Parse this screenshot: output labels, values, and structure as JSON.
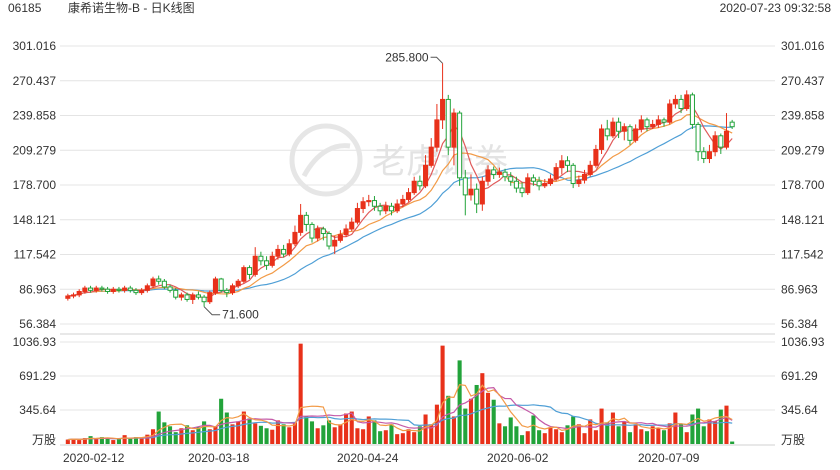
{
  "header": {
    "code": "06185",
    "name": "康希诺生物-B - 日K线图",
    "timestamp": "2020-07-23 09:32:58"
  },
  "watermark": {
    "text": "老虎证券"
  },
  "colors": {
    "up": "#e8311a",
    "down": "#22a33a",
    "ma5": "#e05a5a",
    "ma10": "#f29a46",
    "ma20": "#4f9fd6",
    "ma30": "#c45aa8",
    "grid": "#e4e4e4"
  },
  "chart_data": {
    "type": "candlestick",
    "price_axis": {
      "ticks": [
        "301.016",
        "270.437",
        "239.858",
        "209.279",
        "178.700",
        "148.121",
        "117.542",
        "86.963",
        "56.384"
      ],
      "range": [
        56.384,
        301.016
      ]
    },
    "volume_axis": {
      "ticks": [
        "1036.93",
        "691.29",
        "345.64"
      ],
      "unit": "万股",
      "range": [
        0,
        1036.93
      ]
    },
    "x_labels": [
      "2020-02-12",
      "2020-03-18",
      "2020-04-24",
      "2020-06-02",
      "2020-07-09"
    ],
    "annotations": {
      "high": {
        "label": "285.800",
        "value": 285.8
      },
      "low": {
        "label": "71.600",
        "value": 71.6
      }
    },
    "candles": [
      {
        "o": 79,
        "c": 81,
        "h": 83,
        "l": 77
      },
      {
        "o": 81,
        "c": 82,
        "h": 84,
        "l": 79
      },
      {
        "o": 82,
        "c": 85,
        "h": 87,
        "l": 80
      },
      {
        "o": 85,
        "c": 88,
        "h": 90,
        "l": 83
      },
      {
        "o": 88,
        "c": 86,
        "h": 90,
        "l": 84
      },
      {
        "o": 86,
        "c": 88,
        "h": 90,
        "l": 84
      },
      {
        "o": 88,
        "c": 87,
        "h": 90,
        "l": 85
      },
      {
        "o": 87,
        "c": 85,
        "h": 89,
        "l": 83
      },
      {
        "o": 85,
        "c": 87,
        "h": 89,
        "l": 83
      },
      {
        "o": 87,
        "c": 86,
        "h": 89,
        "l": 84
      },
      {
        "o": 86,
        "c": 88,
        "h": 90,
        "l": 84
      },
      {
        "o": 88,
        "c": 86,
        "h": 90,
        "l": 84
      },
      {
        "o": 86,
        "c": 84,
        "h": 88,
        "l": 82
      },
      {
        "o": 84,
        "c": 86,
        "h": 88,
        "l": 82
      },
      {
        "o": 86,
        "c": 90,
        "h": 92,
        "l": 84
      },
      {
        "o": 90,
        "c": 96,
        "h": 98,
        "l": 88
      },
      {
        "o": 96,
        "c": 94,
        "h": 99,
        "l": 91
      },
      {
        "o": 94,
        "c": 89,
        "h": 96,
        "l": 87
      },
      {
        "o": 89,
        "c": 86,
        "h": 91,
        "l": 84
      },
      {
        "o": 86,
        "c": 80,
        "h": 88,
        "l": 78
      },
      {
        "o": 80,
        "c": 82,
        "h": 84,
        "l": 77
      },
      {
        "o": 82,
        "c": 78,
        "h": 84,
        "l": 76
      },
      {
        "o": 78,
        "c": 82,
        "h": 84,
        "l": 74
      },
      {
        "o": 82,
        "c": 80,
        "h": 85,
        "l": 78
      },
      {
        "o": 80,
        "c": 76,
        "h": 82,
        "l": 71.6
      },
      {
        "o": 76,
        "c": 84,
        "h": 86,
        "l": 74
      },
      {
        "o": 84,
        "c": 96,
        "h": 98,
        "l": 82
      },
      {
        "o": 96,
        "c": 86,
        "h": 97,
        "l": 84
      },
      {
        "o": 86,
        "c": 84,
        "h": 88,
        "l": 80
      },
      {
        "o": 84,
        "c": 90,
        "h": 92,
        "l": 82
      },
      {
        "o": 90,
        "c": 94,
        "h": 96,
        "l": 88
      },
      {
        "o": 94,
        "c": 106,
        "h": 108,
        "l": 92
      },
      {
        "o": 106,
        "c": 100,
        "h": 108,
        "l": 96
      },
      {
        "o": 100,
        "c": 116,
        "h": 124,
        "l": 98
      },
      {
        "o": 116,
        "c": 112,
        "h": 120,
        "l": 108
      },
      {
        "o": 112,
        "c": 108,
        "h": 116,
        "l": 104
      },
      {
        "o": 108,
        "c": 116,
        "h": 120,
        "l": 106
      },
      {
        "o": 116,
        "c": 122,
        "h": 126,
        "l": 113
      },
      {
        "o": 122,
        "c": 118,
        "h": 126,
        "l": 115
      },
      {
        "o": 118,
        "c": 127,
        "h": 131,
        "l": 116
      },
      {
        "o": 127,
        "c": 137,
        "h": 143,
        "l": 125
      },
      {
        "o": 137,
        "c": 152,
        "h": 162,
        "l": 134
      },
      {
        "o": 152,
        "c": 144,
        "h": 155,
        "l": 138
      },
      {
        "o": 144,
        "c": 132,
        "h": 146,
        "l": 128
      },
      {
        "o": 132,
        "c": 140,
        "h": 143,
        "l": 129
      },
      {
        "o": 140,
        "c": 136,
        "h": 142,
        "l": 130
      },
      {
        "o": 136,
        "c": 125,
        "h": 138,
        "l": 122
      },
      {
        "o": 125,
        "c": 130,
        "h": 134,
        "l": 118
      },
      {
        "o": 130,
        "c": 135,
        "h": 139,
        "l": 128
      },
      {
        "o": 135,
        "c": 140,
        "h": 144,
        "l": 133
      },
      {
        "o": 140,
        "c": 146,
        "h": 150,
        "l": 138
      },
      {
        "o": 146,
        "c": 158,
        "h": 163,
        "l": 144
      },
      {
        "o": 158,
        "c": 164,
        "h": 168,
        "l": 154
      },
      {
        "o": 164,
        "c": 165,
        "h": 170,
        "l": 160
      },
      {
        "o": 165,
        "c": 160,
        "h": 169,
        "l": 156
      },
      {
        "o": 160,
        "c": 156,
        "h": 163,
        "l": 152
      },
      {
        "o": 156,
        "c": 160,
        "h": 164,
        "l": 153
      },
      {
        "o": 160,
        "c": 156,
        "h": 163,
        "l": 152
      },
      {
        "o": 156,
        "c": 162,
        "h": 166,
        "l": 154
      },
      {
        "o": 162,
        "c": 166,
        "h": 170,
        "l": 159
      },
      {
        "o": 166,
        "c": 172,
        "h": 176,
        "l": 164
      },
      {
        "o": 172,
        "c": 182,
        "h": 186,
        "l": 170
      },
      {
        "o": 182,
        "c": 178,
        "h": 187,
        "l": 174
      },
      {
        "o": 178,
        "c": 196,
        "h": 205,
        "l": 176
      },
      {
        "o": 196,
        "c": 212,
        "h": 220,
        "l": 194
      },
      {
        "o": 212,
        "c": 236,
        "h": 250,
        "l": 208
      },
      {
        "o": 236,
        "c": 254,
        "h": 285.8,
        "l": 228
      },
      {
        "o": 254,
        "c": 212,
        "h": 258,
        "l": 205
      },
      {
        "o": 212,
        "c": 242,
        "h": 246,
        "l": 196
      },
      {
        "o": 242,
        "c": 185,
        "h": 244,
        "l": 178
      },
      {
        "o": 185,
        "c": 170,
        "h": 192,
        "l": 152
      },
      {
        "o": 170,
        "c": 175,
        "h": 188,
        "l": 165
      },
      {
        "o": 175,
        "c": 162,
        "h": 180,
        "l": 154
      },
      {
        "o": 162,
        "c": 182,
        "h": 186,
        "l": 156
      },
      {
        "o": 182,
        "c": 192,
        "h": 196,
        "l": 178
      },
      {
        "o": 192,
        "c": 188,
        "h": 195,
        "l": 184
      },
      {
        "o": 188,
        "c": 190,
        "h": 194,
        "l": 185
      },
      {
        "o": 190,
        "c": 186,
        "h": 193,
        "l": 182
      },
      {
        "o": 186,
        "c": 182,
        "h": 190,
        "l": 178
      },
      {
        "o": 182,
        "c": 176,
        "h": 186,
        "l": 172
      },
      {
        "o": 176,
        "c": 172,
        "h": 181,
        "l": 168
      },
      {
        "o": 172,
        "c": 185,
        "h": 189,
        "l": 170
      },
      {
        "o": 185,
        "c": 182,
        "h": 188,
        "l": 178
      },
      {
        "o": 182,
        "c": 178,
        "h": 186,
        "l": 174
      },
      {
        "o": 178,
        "c": 180,
        "h": 184,
        "l": 176
      },
      {
        "o": 180,
        "c": 184,
        "h": 188,
        "l": 178
      },
      {
        "o": 184,
        "c": 194,
        "h": 198,
        "l": 182
      },
      {
        "o": 194,
        "c": 200,
        "h": 205,
        "l": 188
      },
      {
        "o": 200,
        "c": 196,
        "h": 204,
        "l": 190
      },
      {
        "o": 196,
        "c": 180,
        "h": 198,
        "l": 176
      },
      {
        "o": 180,
        "c": 183,
        "h": 187,
        "l": 177
      },
      {
        "o": 183,
        "c": 188,
        "h": 192,
        "l": 180
      },
      {
        "o": 188,
        "c": 196,
        "h": 200,
        "l": 186
      },
      {
        "o": 196,
        "c": 210,
        "h": 214,
        "l": 194
      },
      {
        "o": 210,
        "c": 228,
        "h": 232,
        "l": 206
      },
      {
        "o": 228,
        "c": 222,
        "h": 236,
        "l": 218
      },
      {
        "o": 222,
        "c": 234,
        "h": 238,
        "l": 220
      },
      {
        "o": 234,
        "c": 226,
        "h": 238,
        "l": 220
      },
      {
        "o": 226,
        "c": 230,
        "h": 233,
        "l": 218
      },
      {
        "o": 230,
        "c": 218,
        "h": 232,
        "l": 214
      },
      {
        "o": 218,
        "c": 228,
        "h": 232,
        "l": 216
      },
      {
        "o": 228,
        "c": 236,
        "h": 240,
        "l": 225
      },
      {
        "o": 236,
        "c": 230,
        "h": 238,
        "l": 226
      },
      {
        "o": 230,
        "c": 232,
        "h": 236,
        "l": 228
      },
      {
        "o": 232,
        "c": 236,
        "h": 240,
        "l": 229
      },
      {
        "o": 236,
        "c": 234,
        "h": 238,
        "l": 230
      },
      {
        "o": 234,
        "c": 250,
        "h": 254,
        "l": 232
      },
      {
        "o": 250,
        "c": 254,
        "h": 258,
        "l": 246
      },
      {
        "o": 254,
        "c": 246,
        "h": 258,
        "l": 242
      },
      {
        "o": 246,
        "c": 258,
        "h": 262,
        "l": 244
      },
      {
        "o": 258,
        "c": 232,
        "h": 260,
        "l": 228
      },
      {
        "o": 232,
        "c": 208,
        "h": 234,
        "l": 200
      },
      {
        "o": 208,
        "c": 202,
        "h": 212,
        "l": 198
      },
      {
        "o": 202,
        "c": 208,
        "h": 214,
        "l": 198
      },
      {
        "o": 208,
        "c": 222,
        "h": 226,
        "l": 204
      },
      {
        "o": 222,
        "c": 212,
        "h": 224,
        "l": 206
      },
      {
        "o": 212,
        "c": 226,
        "h": 242,
        "l": 210
      },
      {
        "o": 234,
        "c": 230,
        "h": 236,
        "l": 228
      }
    ],
    "volumes": [
      45,
      55,
      40,
      60,
      80,
      50,
      70,
      55,
      40,
      50,
      90,
      60,
      70,
      55,
      95,
      150,
      330,
      220,
      180,
      120,
      160,
      190,
      140,
      170,
      230,
      150,
      180,
      460,
      320,
      200,
      230,
      330,
      260,
      210,
      185,
      160,
      145,
      240,
      200,
      170,
      220,
      1020,
      280,
      230,
      160,
      190,
      240,
      170,
      200,
      310,
      330,
      160,
      150,
      280,
      240,
      130,
      140,
      200,
      100,
      110,
      150,
      120,
      180,
      300,
      200,
      400,
      1000,
      490,
      280,
      850,
      360,
      460,
      600,
      720,
      520,
      450,
      210,
      180,
      270,
      180,
      90,
      130,
      290,
      140,
      110,
      170,
      150,
      120,
      190,
      280,
      200,
      110,
      250,
      140,
      360,
      220,
      320,
      180,
      230,
      120,
      200,
      150,
      130,
      180,
      160,
      140,
      210,
      320,
      200,
      120,
      300,
      360,
      180,
      250,
      230,
      350,
      390,
      25
    ]
  }
}
